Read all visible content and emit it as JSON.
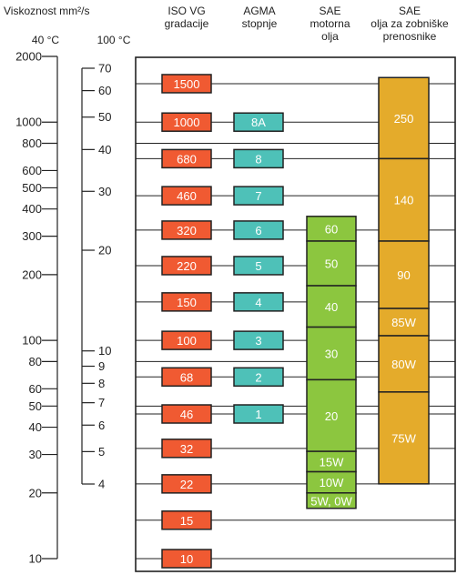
{
  "headers": {
    "viscosity": "Viskoznost mm²/s",
    "temp40": "40 °C",
    "temp100": "100 °C",
    "iso": [
      "ISO VG",
      "gradacije"
    ],
    "agma": [
      "AGMA",
      "stopnje"
    ],
    "sae_motor": [
      "SAE",
      "motorna",
      "olja"
    ],
    "sae_gear": [
      "SAE",
      "olja za zobniške",
      "prenosnike"
    ]
  },
  "colors": {
    "iso": "#f05a32",
    "agma": "#4ec1b8",
    "sae_motor": "#8cc63f",
    "sae_gear": "#e4ab2b",
    "line": "#222222"
  },
  "chart_data": {
    "type": "table",
    "axis_40c": {
      "unit": "mm²/s",
      "range": [
        10,
        2000
      ],
      "scale": "log",
      "ticks": [
        2000,
        1000,
        800,
        600,
        500,
        400,
        300,
        200,
        100,
        80,
        60,
        50,
        40,
        30,
        20,
        10
      ]
    },
    "axis_100c": {
      "unit": "mm²/s",
      "scale": "log",
      "ticks": [
        70,
        60,
        50,
        40,
        30,
        20,
        10,
        9,
        8,
        7,
        6,
        5,
        4
      ]
    },
    "iso_vg": [
      1500,
      1000,
      680,
      460,
      320,
      220,
      150,
      100,
      68,
      46,
      32,
      22,
      15,
      10
    ],
    "agma": [
      {
        "label": "8A",
        "iso_vg": 1000
      },
      {
        "label": "8",
        "iso_vg": 680
      },
      {
        "label": "7",
        "iso_vg": 460
      },
      {
        "label": "6",
        "iso_vg": 320
      },
      {
        "label": "5",
        "iso_vg": 220
      },
      {
        "label": "4",
        "iso_vg": 150
      },
      {
        "label": "3",
        "iso_vg": 100
      },
      {
        "label": "2",
        "iso_vg": 68
      },
      {
        "label": "1",
        "iso_vg": 46
      }
    ],
    "sae_motor": [
      {
        "label": "60",
        "from": 285,
        "to": 370
      },
      {
        "label": "50",
        "from": 178,
        "to": 285
      },
      {
        "label": "40",
        "from": 115,
        "to": 178
      },
      {
        "label": "30",
        "from": 66,
        "to": 115
      },
      {
        "label": "20",
        "from": 31,
        "to": 66
      },
      {
        "label": "15W",
        "from": 25,
        "to": 31
      },
      {
        "label": "10W",
        "from": 20,
        "to": 25
      },
      {
        "label": "5W, 0W",
        "from": 17,
        "to": 20
      }
    ],
    "sae_gear": [
      {
        "label": "250",
        "from": 680,
        "to": 1600
      },
      {
        "label": "140",
        "from": 285,
        "to": 680
      },
      {
        "label": "90",
        "from": 140,
        "to": 285
      },
      {
        "label": "85W",
        "from": 105,
        "to": 140
      },
      {
        "label": "80W",
        "from": 58,
        "to": 105
      },
      {
        "label": "75W",
        "from": 22,
        "to": 58
      }
    ],
    "guides": [
      1500,
      1000,
      800,
      680,
      460,
      320,
      220,
      150,
      100,
      80,
      68,
      50,
      46,
      32,
      22,
      15,
      10
    ]
  }
}
